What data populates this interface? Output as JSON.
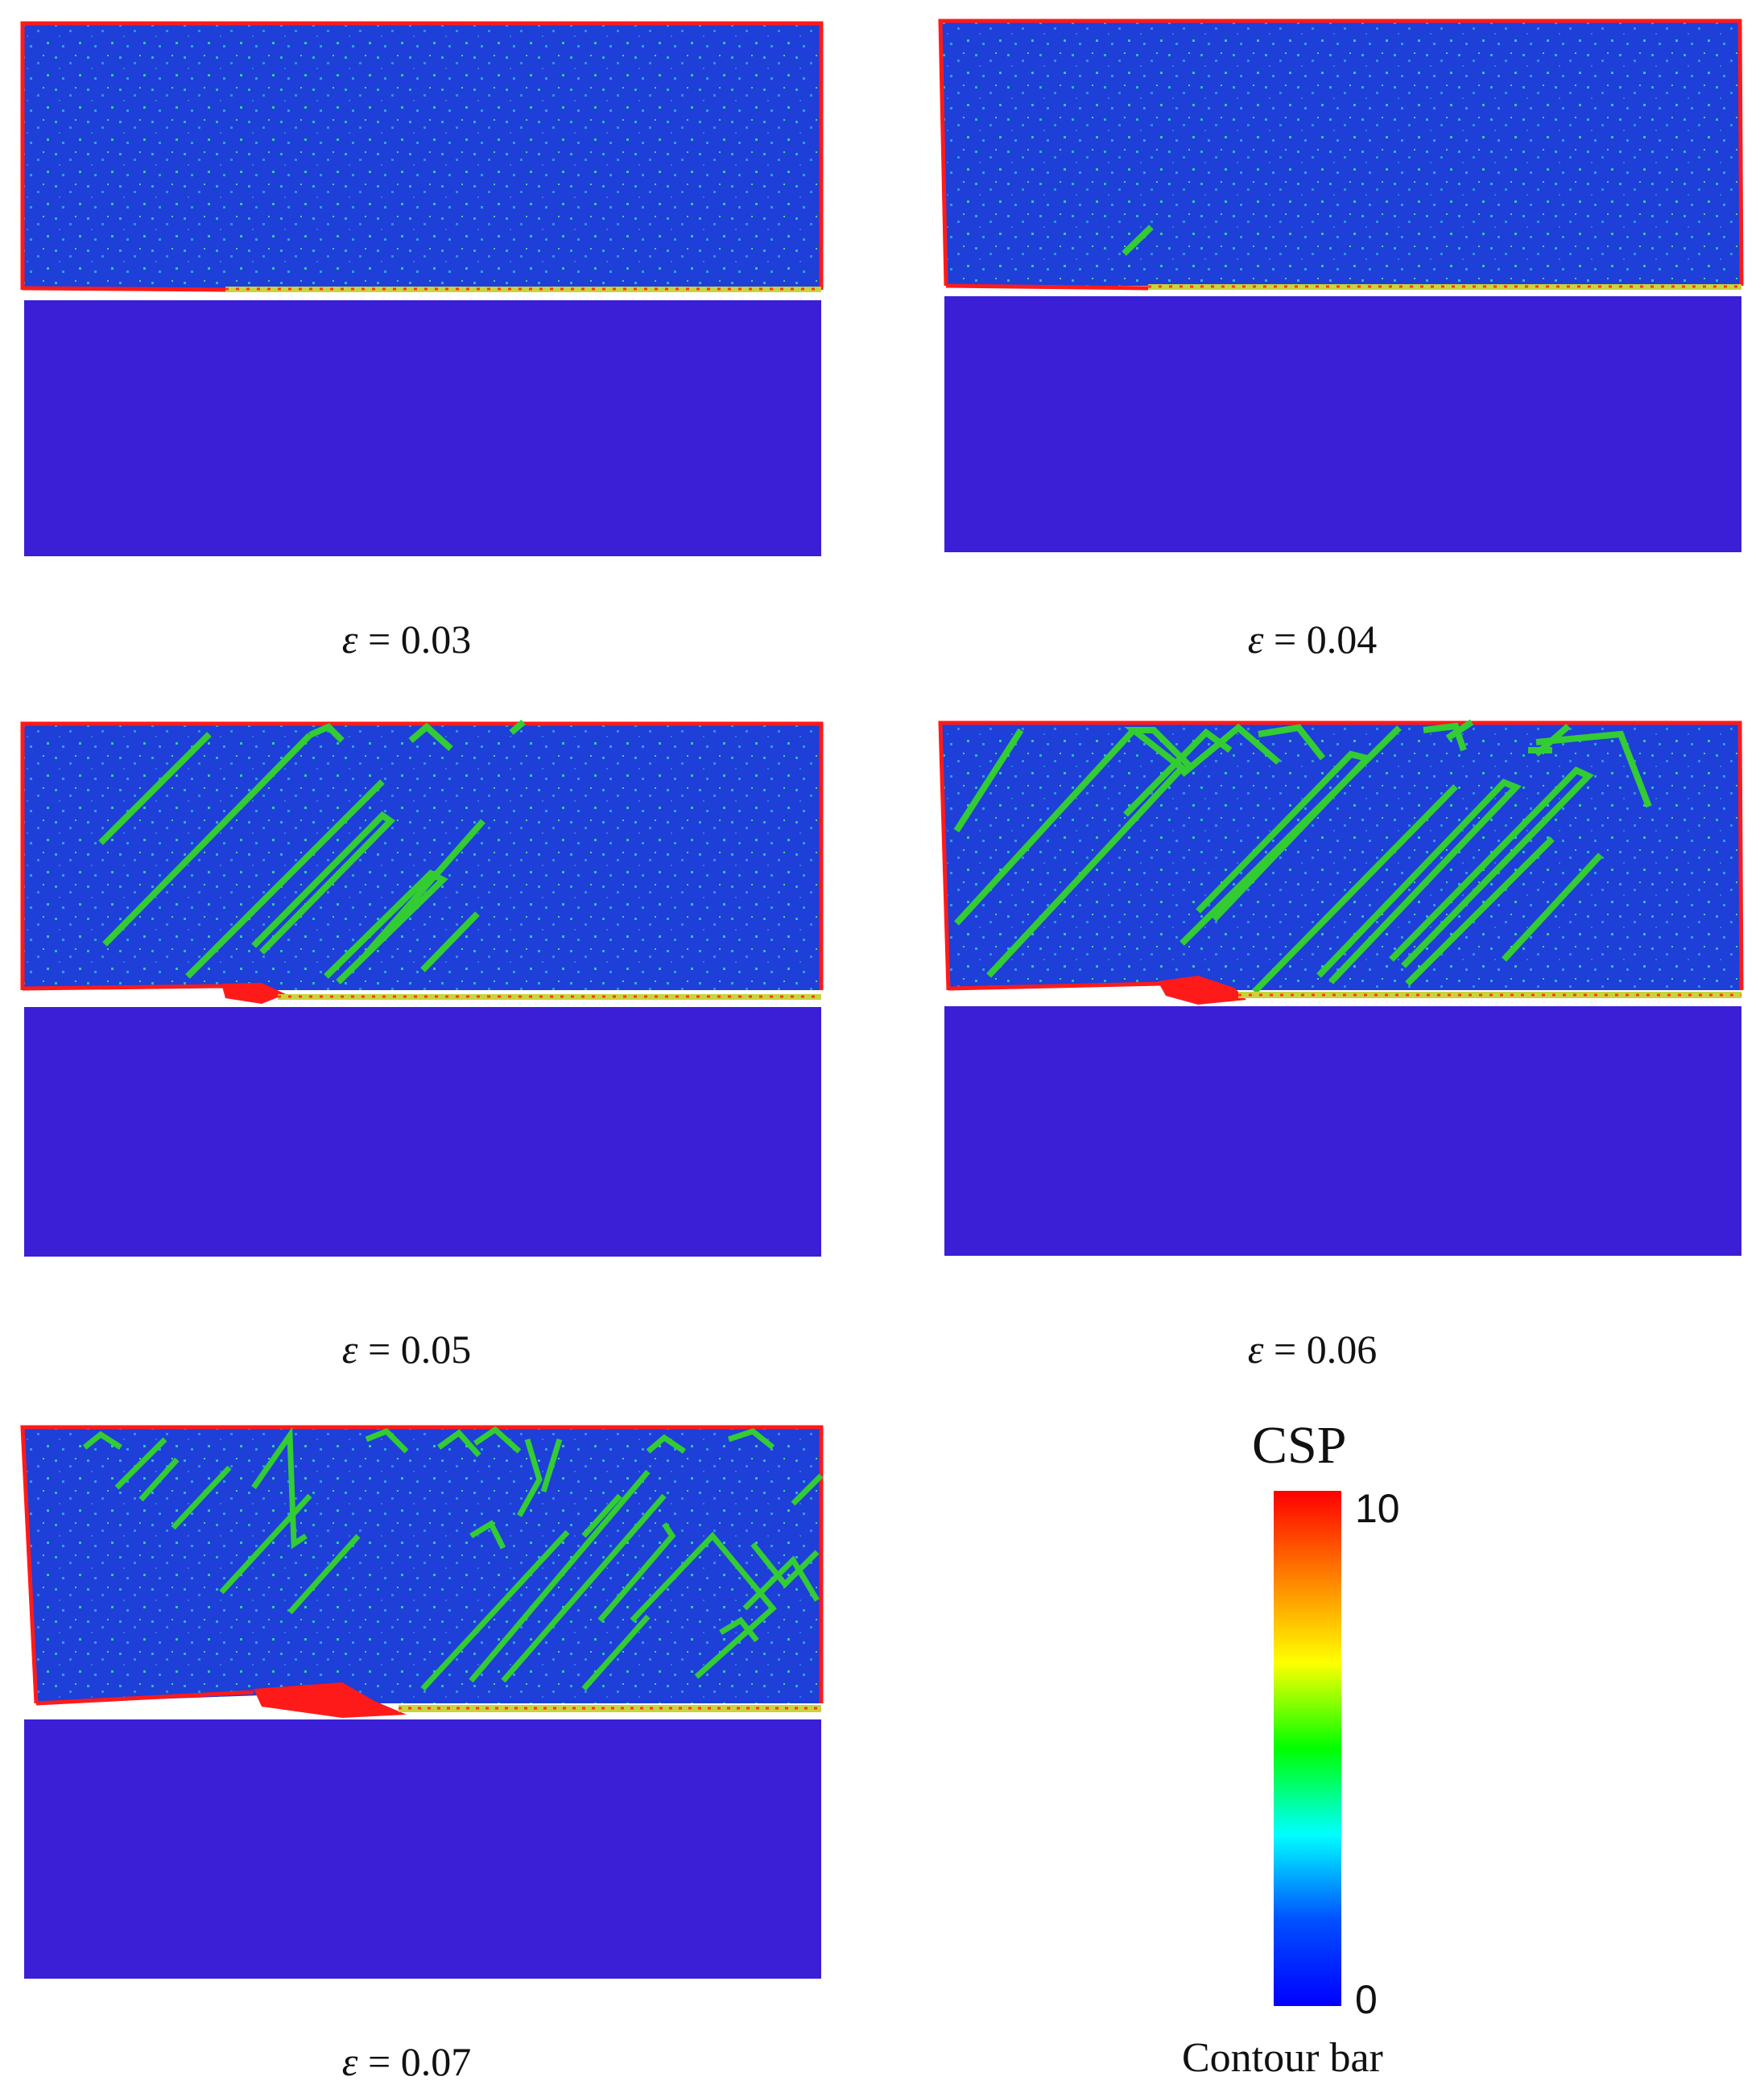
{
  "panels": [
    {
      "strain_label": "ε = 0.03",
      "symbol": "ε",
      "value": "= 0.03"
    },
    {
      "strain_label": "ε = 0.04",
      "symbol": "ε",
      "value": "= 0.04"
    },
    {
      "strain_label": "ε = 0.05",
      "symbol": "ε",
      "value": "= 0.05"
    },
    {
      "strain_label": "ε = 0.06",
      "symbol": "ε",
      "value": "= 0.06"
    },
    {
      "strain_label": "ε = 0.07",
      "symbol": "ε",
      "value": "= 0.07"
    }
  ],
  "colorbar": {
    "title": "CSP",
    "max_label": "10",
    "min_label": "0",
    "caption": "Contour bar",
    "colors": [
      "#ff0000",
      "#ff8000",
      "#ffff00",
      "#00ff00",
      "#00ffff",
      "#0050ff",
      "#0000ff"
    ]
  },
  "colors": {
    "upper_block": "#1e3fd8",
    "lower_block": "#3a1fd6",
    "edge": "#ff1a1a",
    "defect": "#33cc33"
  }
}
